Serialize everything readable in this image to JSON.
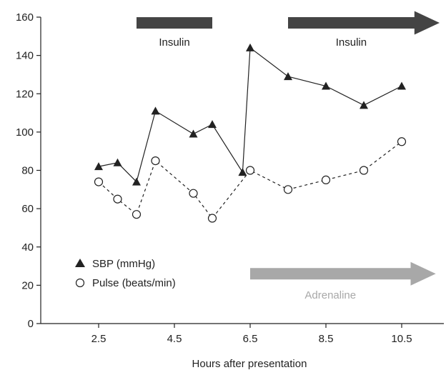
{
  "chart_data": {
    "type": "line",
    "xlabel": "Hours after presentation",
    "ylabel": "",
    "xlim": [
      1.5,
      11.5
    ],
    "ylim": [
      0,
      160
    ],
    "xticks": [
      2.5,
      4.5,
      6.5,
      8.5,
      10.5
    ],
    "xtick_labels": [
      "2.5",
      "4.5",
      "6.5",
      "8.5",
      "10.5"
    ],
    "yticks": [
      0,
      20,
      40,
      60,
      80,
      100,
      120,
      140,
      160
    ],
    "yticks_labels": [
      "0",
      "20",
      "40",
      "60",
      "80",
      "100",
      "120",
      "140",
      "160"
    ],
    "grid": false,
    "legend_position": "bottom-left",
    "series": [
      {
        "name": "SBP (mmHg)",
        "marker": "filled-triangle",
        "line": "solid",
        "color": "#222222",
        "x": [
          2.5,
          3.0,
          3.5,
          4.0,
          5.0,
          5.5,
          6.3,
          6.5,
          7.5,
          8.5,
          9.5,
          10.5
        ],
        "y": [
          82,
          84,
          74,
          111,
          99,
          104,
          79,
          144,
          129,
          124,
          114,
          124
        ]
      },
      {
        "name": "Pulse (beats/min)",
        "marker": "open-circle",
        "line": "dashed",
        "color": "#222222",
        "x": [
          2.5,
          3.0,
          3.5,
          4.0,
          5.0,
          5.5,
          6.5,
          7.5,
          8.5,
          9.5,
          10.5
        ],
        "y": [
          74,
          65,
          57,
          85,
          68,
          55,
          80,
          70,
          75,
          80,
          95
        ]
      }
    ],
    "annotations": [
      {
        "kind": "bar",
        "label": "Insulin",
        "x_start": 3.5,
        "x_end": 5.5,
        "level": 157,
        "label_level": 147,
        "color": "#444444"
      },
      {
        "kind": "arrow",
        "label": "Insulin",
        "x_start": 7.5,
        "x_end": 11.5,
        "level": 157,
        "label_level": 147,
        "color": "#444444"
      },
      {
        "kind": "arrow",
        "label": "Adrenaline",
        "x_start": 6.5,
        "x_end": 11.4,
        "level": 26,
        "label_level": 15,
        "color": "#a8a8a8"
      }
    ]
  }
}
